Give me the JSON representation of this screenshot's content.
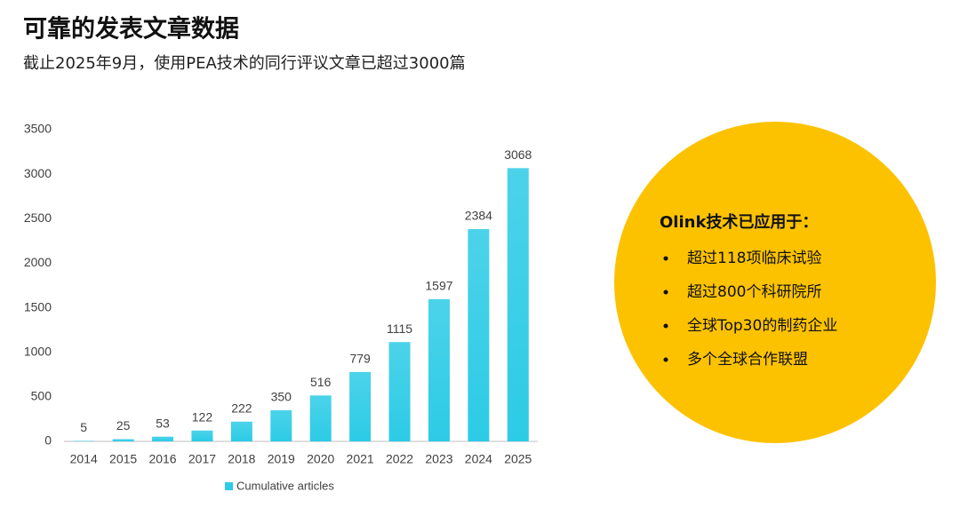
{
  "chart_data": {
    "type": "bar",
    "title": "可靠的发表文章数据",
    "subtitle": "截止2025年9月，使用PEA技术的同行评议文章已超过3000篇",
    "categories": [
      "2014",
      "2015",
      "2016",
      "2017",
      "2018",
      "2019",
      "2020",
      "2021",
      "2022",
      "2023",
      "2024",
      "2025"
    ],
    "series": [
      {
        "name": "Cumulative articles",
        "color": "#2ccbe6",
        "values": [
          5,
          25,
          53,
          122,
          222,
          350,
          516,
          779,
          1115,
          1597,
          2384,
          3068
        ]
      }
    ],
    "ylim": [
      0,
      3500
    ],
    "yticks": [
      0,
      500,
      1000,
      1500,
      2000,
      2500,
      3000,
      3500
    ],
    "grid": false,
    "legend": "bottom"
  },
  "callout": {
    "title": "Olink技术已应用于：",
    "items": [
      "超过118项临床试验",
      "超过800个科研院所",
      "全球Top30的制药企业",
      "多个全球合作联盟"
    ],
    "color": "#fcc200"
  }
}
